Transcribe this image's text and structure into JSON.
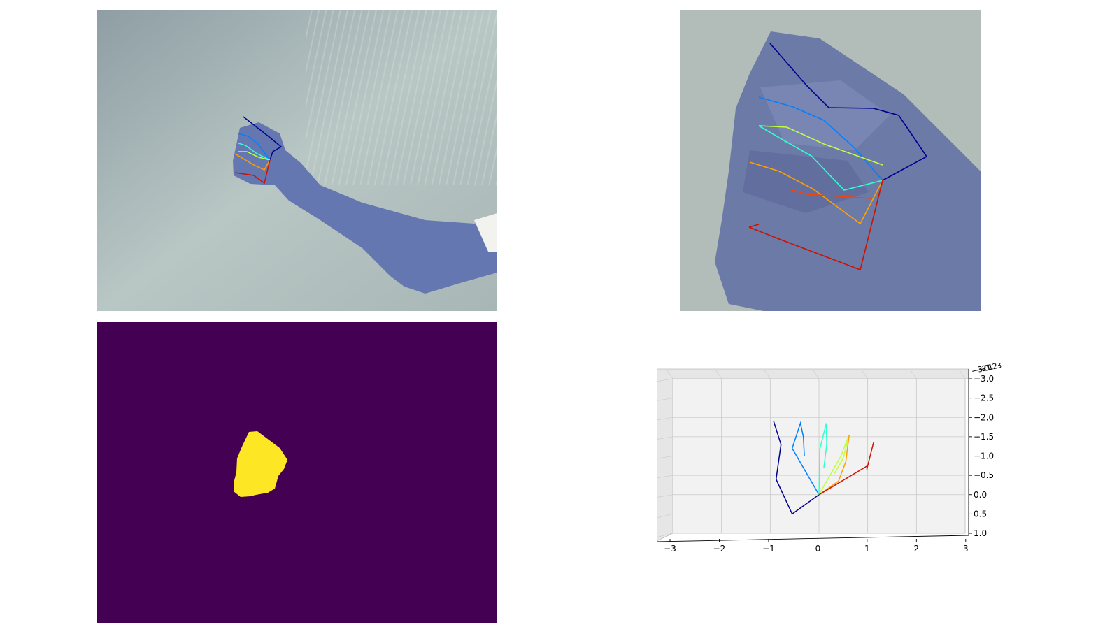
{
  "colors": {
    "finger_colors": [
      "#00008f",
      "#0080ff",
      "#30ffd0",
      "#c0ff40",
      "#ffa000",
      "#d01000"
    ],
    "mask_background": "#440154",
    "mask_foreground": "#fde725",
    "pane_face": "#f2f2f2",
    "grid": "#c8c8c8"
  },
  "panels": {
    "full_image": {
      "content": "camera-photo-arm-with-2d-skeleton"
    },
    "crop_image": {
      "content": "hand-crop-with-2d-skeleton"
    },
    "mask_image": {
      "content": "binary-segmentation-mask"
    },
    "plot_3d": {
      "content": "3d-hand-skeleton"
    }
  },
  "chart_data": {
    "type": "line",
    "projection": "3d",
    "x_ticks": [
      "−3",
      "−2",
      "−1",
      "0",
      "1",
      "2",
      "3"
    ],
    "y_ticks": [
      "−3.0",
      "−2.5",
      "−2.0",
      "−1.5",
      "−1.0",
      "−0.5",
      "0.0",
      "0.5",
      "1.0"
    ],
    "z_ticks_overlapping": [
      "−3",
      "−2",
      "−1",
      "0",
      "1",
      "2",
      "3"
    ],
    "xlim": [
      -3,
      3
    ],
    "ylim": [
      1.0,
      -3.0
    ],
    "grid": true,
    "series": [
      {
        "color": "#00008f",
        "points": [
          [
            0,
            0
          ],
          [
            -0.55,
            0.5
          ],
          [
            -0.88,
            -0.4
          ],
          [
            -0.78,
            -1.3
          ],
          [
            -0.93,
            -1.9
          ]
        ]
      },
      {
        "color": "#0080ff",
        "points": [
          [
            0,
            0
          ],
          [
            -0.55,
            -1.2
          ],
          [
            -0.38,
            -1.85
          ],
          [
            -0.32,
            -1.5
          ],
          [
            -0.3,
            -1.0
          ]
        ]
      },
      {
        "color": "#30ffd0",
        "points": [
          [
            0,
            0
          ],
          [
            0.02,
            -1.2
          ],
          [
            0.15,
            -1.85
          ],
          [
            0.16,
            -1.3
          ],
          [
            0.1,
            -0.7
          ]
        ]
      },
      {
        "color": "#c0ff40",
        "points": [
          [
            0,
            0
          ],
          [
            0.45,
            -1.0
          ],
          [
            0.62,
            -1.55
          ],
          [
            0.5,
            -0.95
          ],
          [
            0.32,
            -0.55
          ]
        ]
      },
      {
        "color": "#ffa000",
        "points": [
          [
            0,
            0
          ],
          [
            0.4,
            -0.35
          ],
          [
            0.55,
            -0.85
          ],
          [
            0.62,
            -1.55
          ]
        ]
      },
      {
        "color": "#d01000",
        "points": [
          [
            0,
            0
          ],
          [
            1.0,
            -0.75
          ],
          [
            1.12,
            -1.35
          ],
          [
            0.98,
            -0.65
          ]
        ]
      }
    ]
  }
}
